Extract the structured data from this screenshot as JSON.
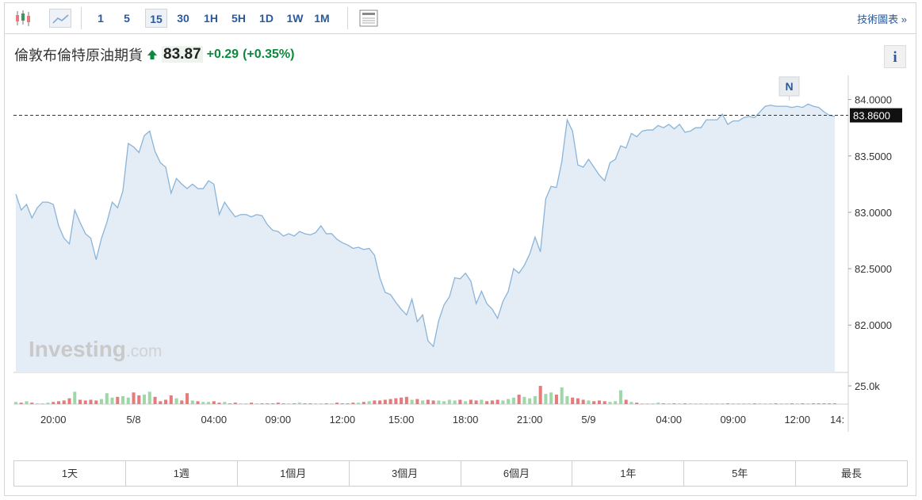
{
  "toolbar": {
    "intervals": [
      "1",
      "5",
      "15",
      "30",
      "1H",
      "5H",
      "1D",
      "1W",
      "1M"
    ],
    "active_interval": 2,
    "link": "技術圖表 »"
  },
  "header": {
    "name": "倫敦布倫特原油期貨",
    "price": "83.87",
    "change": "+0.29",
    "change_pct": "(+0.35%)"
  },
  "info_button": "i",
  "marker": "N",
  "watermark": [
    "Investing",
    ".com"
  ],
  "ranges": [
    "1天",
    "1週",
    "1個月",
    "3個月",
    "6個月",
    "1年",
    "5年",
    "最長"
  ],
  "chart_data": {
    "type": "area",
    "color": "#8ab4d8",
    "fill": "#e4edf6",
    "categories": [
      null,
      null,
      null,
      null,
      null,
      null,
      null,
      "20:00",
      null,
      null,
      null,
      null,
      null,
      null,
      null,
      null,
      null,
      null,
      null,
      null,
      null,
      null,
      "5/8",
      null,
      null,
      null,
      null,
      null,
      null,
      null,
      null,
      null,
      null,
      null,
      null,
      null,
      null,
      "04:00",
      null,
      null,
      null,
      null,
      null,
      null,
      null,
      null,
      null,
      null,
      null,
      "09:00",
      null,
      null,
      null,
      null,
      null,
      null,
      null,
      null,
      null,
      null,
      null,
      "12:00",
      null,
      null,
      null,
      null,
      null,
      null,
      null,
      null,
      null,
      null,
      "15:00",
      null,
      null,
      null,
      null,
      null,
      null,
      null,
      null,
      null,
      null,
      null,
      "18:00",
      null,
      null,
      null,
      null,
      null,
      null,
      null,
      null,
      null,
      null,
      null,
      "21:00",
      null,
      null,
      null,
      null,
      null,
      null,
      null,
      null,
      null,
      null,
      "5/9",
      null,
      null,
      null,
      null,
      null,
      null,
      null,
      null,
      null,
      null,
      null,
      null,
      null,
      null,
      "04:00",
      null,
      null,
      null,
      null,
      null,
      null,
      null,
      null,
      null,
      null,
      null,
      "09:00",
      null,
      null,
      null,
      null,
      null,
      null,
      null,
      null,
      null,
      null,
      null,
      "12:00",
      null,
      null,
      null,
      null,
      null,
      null,
      "14:"
    ],
    "values": [
      83.16,
      83.02,
      83.07,
      82.95,
      83.04,
      83.09,
      83.09,
      83.07,
      82.88,
      82.77,
      82.72,
      83.02,
      82.91,
      82.81,
      82.77,
      82.58,
      82.77,
      82.91,
      83.09,
      83.04,
      83.19,
      83.61,
      83.58,
      83.53,
      83.68,
      83.72,
      83.54,
      83.44,
      83.4,
      83.17,
      83.3,
      83.25,
      83.21,
      83.25,
      83.21,
      83.21,
      83.28,
      83.25,
      82.98,
      83.09,
      83.02,
      82.96,
      82.98,
      82.98,
      82.96,
      82.98,
      82.97,
      82.89,
      82.84,
      82.83,
      82.79,
      82.81,
      82.79,
      82.83,
      82.81,
      82.8,
      82.82,
      82.88,
      82.81,
      82.81,
      82.76,
      82.73,
      82.71,
      82.68,
      82.69,
      82.67,
      82.68,
      82.62,
      82.42,
      82.29,
      82.27,
      82.2,
      82.14,
      82.09,
      82.23,
      82.03,
      82.09,
      81.86,
      81.81,
      82.04,
      82.18,
      82.25,
      82.42,
      82.41,
      82.46,
      82.39,
      82.19,
      82.3,
      82.19,
      82.14,
      82.06,
      82.21,
      82.3,
      82.5,
      82.46,
      82.53,
      82.63,
      82.78,
      82.65,
      83.12,
      83.23,
      83.22,
      83.45,
      83.82,
      83.72,
      83.42,
      83.4,
      83.47,
      83.4,
      83.33,
      83.28,
      83.44,
      83.47,
      83.59,
      83.57,
      83.7,
      83.67,
      83.72,
      83.73,
      83.73,
      83.77,
      83.75,
      83.78,
      83.74,
      83.78,
      83.71,
      83.72,
      83.75,
      83.75,
      83.82,
      83.82,
      83.82,
      83.87,
      83.78,
      83.81,
      83.81,
      83.84,
      83.85,
      83.84,
      83.89,
      83.94,
      83.95,
      83.94,
      83.94,
      83.94,
      83.93,
      83.94,
      83.93,
      83.96,
      83.94,
      83.93,
      83.89,
      83.86,
      83.85
    ],
    "ylim": [
      81.58,
      84.18
    ],
    "yticks": [
      {
        "value": 82,
        "label": "82.0000"
      },
      {
        "value": 82.5,
        "label": "82.5000"
      },
      {
        "value": 83,
        "label": "83.0000"
      },
      {
        "value": 83.5,
        "label": "83.5000"
      },
      {
        "value": 84,
        "label": "84.0000"
      }
    ],
    "last_price": {
      "value": 83.86,
      "label": "83.8600"
    },
    "volume": {
      "up_color": "#9fd8a8",
      "down_color": "#e57b7b",
      "values": [
        3000,
        2000,
        4000,
        2000,
        1000,
        1000,
        2000,
        3000,
        4000,
        5000,
        8000,
        17000,
        6000,
        5000,
        6000,
        5000,
        7000,
        15000,
        9000,
        10000,
        11000,
        9000,
        16000,
        12000,
        13000,
        17000,
        10000,
        4000,
        6000,
        12000,
        8000,
        5000,
        15000,
        5000,
        4000,
        3000,
        3000,
        4000,
        2000,
        3000,
        1000,
        2000,
        1000,
        1000,
        2000,
        1000,
        1000,
        1000,
        1000,
        2000,
        1000,
        1000,
        1000,
        2000,
        1000,
        1000,
        1000,
        1000,
        1000,
        1000,
        2000,
        1000,
        1000,
        2000,
        2000,
        3000,
        4000,
        5000,
        5000,
        6000,
        7000,
        8000,
        9000,
        10000,
        6000,
        7000,
        5000,
        6000,
        5000,
        5000,
        4000,
        6000,
        5000,
        6000,
        4000,
        6000,
        5000,
        6000,
        4000,
        5000,
        6000,
        5000,
        7000,
        9000,
        13000,
        10000,
        8000,
        11000,
        25000,
        14000,
        16000,
        13000,
        23000,
        11000,
        9000,
        8000,
        6000,
        5000,
        4000,
        5000,
        4000,
        3000,
        4000,
        19000,
        6000,
        3000,
        2000,
        1000,
        1000,
        1000,
        2000,
        1000,
        1000,
        1000,
        1000,
        1000,
        1000,
        1000,
        1000,
        1000,
        1000,
        1000,
        1000,
        1000,
        1000,
        1000,
        1000,
        1000,
        1000,
        1000,
        1000,
        1000,
        1000,
        1000,
        1000,
        1000,
        1000,
        1000,
        1000,
        1000,
        1000,
        1000,
        1000,
        1000
      ],
      "ylim": [
        0,
        43500
      ],
      "yticks": [
        {
          "value": 25000,
          "label": "25.0k"
        }
      ]
    }
  }
}
